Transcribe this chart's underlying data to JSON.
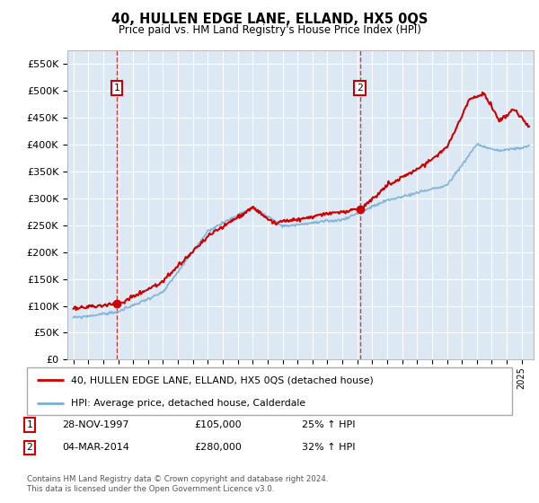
{
  "title": "40, HULLEN EDGE LANE, ELLAND, HX5 0QS",
  "subtitle": "Price paid vs. HM Land Registry's House Price Index (HPI)",
  "legend_line1": "40, HULLEN EDGE LANE, ELLAND, HX5 0QS (detached house)",
  "legend_line2": "HPI: Average price, detached house, Calderdale",
  "transaction1_label": "1",
  "transaction1_date": "28-NOV-1997",
  "transaction1_price": "£105,000",
  "transaction1_hpi": "25% ↑ HPI",
  "transaction2_label": "2",
  "transaction2_date": "04-MAR-2014",
  "transaction2_price": "£280,000",
  "transaction2_hpi": "32% ↑ HPI",
  "footer": "Contains HM Land Registry data © Crown copyright and database right 2024.\nThis data is licensed under the Open Government Licence v3.0.",
  "red_line_color": "#cc0000",
  "blue_line_color": "#7bafd4",
  "plot_bg_color": "#dce9f5",
  "grid_color": "#ffffff",
  "ylim": [
    0,
    575000
  ],
  "yticks": [
    0,
    50000,
    100000,
    150000,
    200000,
    250000,
    300000,
    350000,
    400000,
    450000,
    500000,
    550000
  ],
  "ytick_labels": [
    "£0",
    "£50K",
    "£100K",
    "£150K",
    "£200K",
    "£250K",
    "£300K",
    "£350K",
    "£400K",
    "£450K",
    "£500K",
    "£550K"
  ],
  "transaction1_x": 1997.91,
  "transaction1_y": 105000,
  "transaction2_x": 2014.17,
  "transaction2_y": 280000,
  "xlim_left": 1994.6,
  "xlim_right": 2025.8
}
